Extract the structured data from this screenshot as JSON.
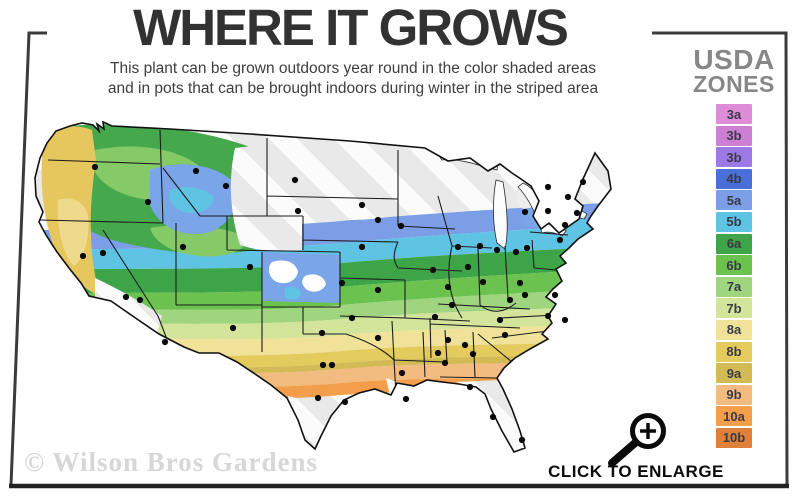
{
  "header": {
    "title": "WHERE IT GROWS",
    "subtitle_line1": "This plant can be grown outdoors year round in the color shaded areas",
    "subtitle_line2": "and in pots that can be brought indoors during winter in the striped area"
  },
  "legend": {
    "title_line1": "USDA",
    "title_line2": "ZONES",
    "zones": [
      {
        "label": "3a",
        "color": "#df8cd8"
      },
      {
        "label": "3b",
        "color": "#cd7fd4"
      },
      {
        "label": "3b",
        "color": "#9d79e6"
      },
      {
        "label": "4b",
        "color": "#4a70d8"
      },
      {
        "label": "5a",
        "color": "#7b9ee6"
      },
      {
        "label": "5b",
        "color": "#5fc3e4"
      },
      {
        "label": "6a",
        "color": "#3da447"
      },
      {
        "label": "6b",
        "color": "#6cc24f"
      },
      {
        "label": "7a",
        "color": "#9fd57e"
      },
      {
        "label": "7b",
        "color": "#d3e49b"
      },
      {
        "label": "8a",
        "color": "#f0e298"
      },
      {
        "label": "8b",
        "color": "#e4cb5e"
      },
      {
        "label": "9a",
        "color": "#d2ba55"
      },
      {
        "label": "9b",
        "color": "#f2bc80"
      },
      {
        "label": "10a",
        "color": "#f29e4b"
      },
      {
        "label": "10b",
        "color": "#e0813b"
      }
    ]
  },
  "map": {
    "striped_area_color": "#e9e9e9",
    "outline_color": "#111111",
    "city_dots": [
      [
        95,
        167
      ],
      [
        148,
        202
      ],
      [
        196,
        171
      ],
      [
        226,
        186
      ],
      [
        295,
        180
      ],
      [
        298,
        211
      ],
      [
        362,
        205
      ],
      [
        378,
        220
      ],
      [
        83,
        256
      ],
      [
        103,
        253
      ],
      [
        183,
        247
      ],
      [
        250,
        267
      ],
      [
        140,
        300
      ],
      [
        126,
        297
      ],
      [
        165,
        342
      ],
      [
        233,
        328
      ],
      [
        362,
        247
      ],
      [
        342,
        283
      ],
      [
        378,
        290
      ],
      [
        352,
        318
      ],
      [
        322,
        333
      ],
      [
        378,
        338
      ],
      [
        323,
        365
      ],
      [
        332,
        365
      ],
      [
        318,
        398
      ],
      [
        345,
        402
      ],
      [
        401,
        226
      ],
      [
        433,
        270
      ],
      [
        448,
        287
      ],
      [
        452,
        305
      ],
      [
        458,
        247
      ],
      [
        480,
        246
      ],
      [
        468,
        267
      ],
      [
        483,
        282
      ],
      [
        516,
        252
      ],
      [
        520,
        283
      ],
      [
        525,
        295
      ],
      [
        510,
        300
      ],
      [
        500,
        320
      ],
      [
        435,
        317
      ],
      [
        448,
        340
      ],
      [
        402,
        373
      ],
      [
        406,
        399
      ],
      [
        438,
        353
      ],
      [
        445,
        363
      ],
      [
        465,
        345
      ],
      [
        473,
        354
      ],
      [
        505,
        335
      ],
      [
        548,
        316
      ],
      [
        565,
        320
      ],
      [
        555,
        295
      ],
      [
        470,
        387
      ],
      [
        493,
        417
      ],
      [
        522,
        440
      ],
      [
        548,
        187
      ],
      [
        568,
        197
      ],
      [
        583,
        182
      ],
      [
        525,
        212
      ],
      [
        548,
        211
      ],
      [
        497,
        250
      ],
      [
        527,
        248
      ],
      [
        577,
        213
      ],
      [
        565,
        225
      ],
      [
        560,
        240
      ]
    ]
  },
  "footer": {
    "watermark": "© Wilson Bros Gardens",
    "enlarge_label": "CLICK TO ENLARGE"
  }
}
